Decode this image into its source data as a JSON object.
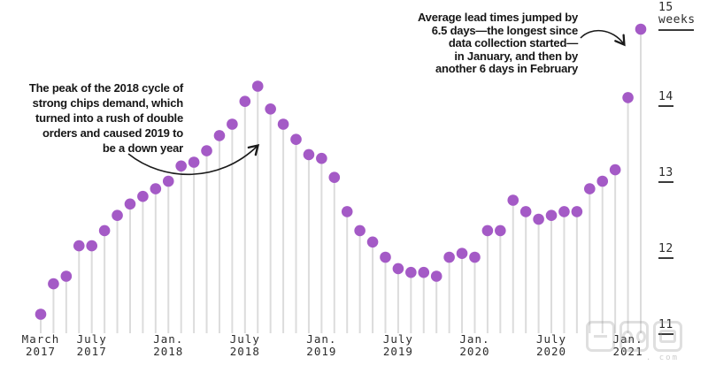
{
  "annotations": {
    "left": {
      "lines": [
        "The peak of the 2018 cycle of",
        "strong chips demand, which",
        "turned into a rush of double",
        "orders and caused 2019 to",
        "be a down year"
      ]
    },
    "right": {
      "lines": [
        "Average lead times jumped by",
        "6.5 days—the longest since",
        "data collection started—",
        "in January, and then by",
        "another 6 days in February"
      ]
    }
  },
  "chart_data": {
    "type": "lollipop",
    "title": "",
    "ylabel": "weeks",
    "y_unit_label": "weeks",
    "ylim": [
      11,
      15
    ],
    "y_ticks": [
      15,
      14,
      13,
      12,
      11
    ],
    "grid": false,
    "x": [
      "Mar 2017",
      "Apr 2017",
      "May 2017",
      "Jun 2017",
      "Jul 2017",
      "Aug 2017",
      "Sep 2017",
      "Oct 2017",
      "Nov 2017",
      "Dec 2017",
      "Jan 2018",
      "Feb 2018",
      "Mar 2018",
      "Apr 2018",
      "May 2018",
      "Jun 2018",
      "Jul 2018",
      "Aug 2018",
      "Sep 2018",
      "Oct 2018",
      "Nov 2018",
      "Dec 2018",
      "Jan 2019",
      "Feb 2019",
      "Mar 2019",
      "Apr 2019",
      "May 2019",
      "Jun 2019",
      "Jul 2019",
      "Aug 2019",
      "Sep 2019",
      "Oct 2019",
      "Nov 2019",
      "Dec 2019",
      "Jan 2020",
      "Feb 2020",
      "Mar 2020",
      "Apr 2020",
      "May 2020",
      "Jun 2020",
      "Jul 2020",
      "Aug 2020",
      "Sep 2020",
      "Oct 2020",
      "Nov 2020",
      "Dec 2020",
      "Jan 2021",
      "Feb 2021"
    ],
    "values": [
      11.25,
      11.65,
      11.75,
      12.15,
      12.15,
      12.35,
      12.55,
      12.7,
      12.8,
      12.9,
      13.0,
      13.2,
      13.25,
      13.4,
      13.6,
      13.75,
      14.05,
      14.25,
      13.95,
      13.75,
      13.55,
      13.35,
      13.3,
      13.05,
      12.6,
      12.35,
      12.2,
      12.0,
      11.85,
      11.8,
      11.8,
      11.75,
      12.0,
      12.05,
      12.0,
      12.35,
      12.35,
      12.75,
      12.6,
      12.5,
      12.55,
      12.6,
      12.6,
      12.9,
      13.0,
      13.15,
      14.1,
      15.0
    ],
    "x_ticks": [
      {
        "line1": "March",
        "line2": "2017",
        "month_index": 0
      },
      {
        "line1": "July",
        "line2": "2017",
        "month_index": 4
      },
      {
        "line1": "Jan.",
        "line2": "2018",
        "month_index": 10
      },
      {
        "line1": "July",
        "line2": "2018",
        "month_index": 16
      },
      {
        "line1": "Jan.",
        "line2": "2019",
        "month_index": 22
      },
      {
        "line1": "July",
        "line2": "2019",
        "month_index": 28
      },
      {
        "line1": "Jan.",
        "line2": "2020",
        "month_index": 34
      },
      {
        "line1": "July",
        "line2": "2020",
        "month_index": 40
      },
      {
        "line1": "Jan.",
        "line2": "2021",
        "month_index": 46
      }
    ],
    "colors": {
      "dot": "#A45AC6",
      "stem": "#DCDCDC",
      "text": "#2b2b2b",
      "annotation": "#161616"
    }
  },
  "watermark": {
    "text": "智東西",
    "suffix": ". com"
  }
}
